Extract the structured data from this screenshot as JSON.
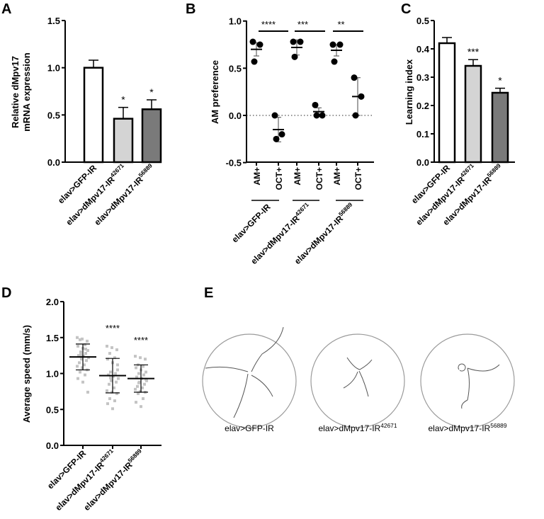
{
  "panel_letters": [
    "A",
    "B",
    "C",
    "D",
    "E"
  ],
  "chart_data": [
    {
      "panel": "A",
      "type": "bar",
      "ylabel_lines": [
        "Relative dMpv17",
        "mRNA expression"
      ],
      "ylim": [
        0,
        1.5
      ],
      "yticks": [
        "0.0",
        "0.5",
        "1.0",
        "1.5"
      ],
      "categories": [
        {
          "base": "elav>GFP-IR",
          "sup": ""
        },
        {
          "base": "elav>dMpv17-IR",
          "sup": "42671"
        },
        {
          "base": "elav>dMpv17-IR",
          "sup": "56889"
        }
      ],
      "values": [
        1.0,
        0.46,
        0.56
      ],
      "errors": [
        0.08,
        0.12,
        0.1
      ],
      "fills": [
        "#ffffff",
        "#d4d4d4",
        "#7a7a7a"
      ],
      "significance": [
        "",
        "*",
        "*"
      ]
    },
    {
      "panel": "B",
      "type": "scatter",
      "ylabel": "AM preference",
      "ylim": [
        -0.5,
        1.0
      ],
      "yticks": [
        "-0.5",
        "0.0",
        "0.5",
        "1.0"
      ],
      "conditions": [
        "AM+",
        "OCT+",
        "AM+",
        "OCT+",
        "AM+",
        "OCT+"
      ],
      "groups": [
        {
          "base": "elav>GFP-IR",
          "sup": ""
        },
        {
          "base": "elav>dMpv17-IR",
          "sup": "42671"
        },
        {
          "base": "elav>dMpv17-IR",
          "sup": "56889"
        }
      ],
      "points": [
        [
          0.78,
          0.75,
          0.57
        ],
        [
          0.0,
          -0.2,
          -0.25
        ],
        [
          0.78,
          0.78,
          0.62
        ],
        [
          0.11,
          0.0,
          0.0
        ],
        [
          0.75,
          0.75,
          0.57
        ],
        [
          0.4,
          0.2,
          0.0
        ]
      ],
      "means": [
        0.7,
        -0.15,
        0.72,
        0.04,
        0.69,
        0.2
      ],
      "errors": [
        0.07,
        0.13,
        0.08,
        0.04,
        0.06,
        0.2
      ],
      "significance": [
        "****",
        "***",
        "**"
      ]
    },
    {
      "panel": "C",
      "type": "bar",
      "ylabel": "Learning index",
      "ylim": [
        0,
        0.5
      ],
      "yticks": [
        "0.0",
        "0.1",
        "0.2",
        "0.3",
        "0.4",
        "0.5"
      ],
      "categories": [
        {
          "base": "elav>GFP-IR",
          "sup": ""
        },
        {
          "base": "elav>dMpv17-IR",
          "sup": "42671"
        },
        {
          "base": "elav>dMpv17-IR",
          "sup": "56889"
        }
      ],
      "values": [
        0.42,
        0.34,
        0.245
      ],
      "errors": [
        0.02,
        0.022,
        0.016
      ],
      "fills": [
        "#ffffff",
        "#d4d4d4",
        "#7a7a7a"
      ],
      "significance": [
        "",
        "***",
        "*"
      ]
    },
    {
      "panel": "D",
      "type": "scatter",
      "ylabel": "Average speed (mm/s)",
      "ylim": [
        0,
        2.0
      ],
      "yticks": [
        "0.0",
        "0.5",
        "1.0",
        "1.5",
        "2.0"
      ],
      "categories": [
        {
          "base": "elav>GFP-IR",
          "sup": ""
        },
        {
          "base": "elav>dMpv17-IR",
          "sup": "42671"
        },
        {
          "base": "elav>dMpv17-IR",
          "sup": "56889"
        }
      ],
      "points": [
        [
          1.5,
          1.48,
          1.45,
          1.47,
          1.4,
          1.38,
          1.35,
          1.32,
          1.3,
          1.28,
          1.25,
          1.24,
          1.22,
          1.2,
          1.18,
          1.15,
          1.12,
          1.1,
          1.08,
          1.05,
          1.02,
          0.98,
          0.93,
          0.88,
          0.74,
          1.26,
          1.34
        ],
        [
          1.38,
          1.36,
          1.33,
          1.28,
          1.22,
          1.2,
          1.15,
          1.05,
          1.02,
          1.0,
          0.98,
          0.96,
          0.93,
          0.9,
          0.88,
          0.85,
          0.8,
          0.76,
          0.74,
          0.72,
          0.65,
          0.62,
          0.58,
          0.51,
          1.12,
          0.94
        ],
        [
          1.24,
          1.22,
          1.2,
          1.12,
          1.1,
          1.08,
          1.05,
          1.02,
          1.0,
          0.98,
          0.95,
          0.93,
          0.9,
          0.88,
          0.85,
          0.82,
          0.8,
          0.78,
          0.75,
          0.74,
          0.72,
          0.65,
          0.6,
          0.54,
          0.92,
          0.87
        ]
      ],
      "means": [
        1.23,
        0.97,
        0.93
      ],
      "sd": [
        0.18,
        0.24,
        0.19
      ],
      "significance": [
        "",
        "****",
        "****"
      ]
    }
  ],
  "panel_e": {
    "labels": [
      {
        "base": "elav>GFP-IR",
        "sup": ""
      },
      {
        "base": "elav>dMpv17-IR",
        "sup": "42671"
      },
      {
        "base": "elav>dMpv17-IR",
        "sup": "56889"
      }
    ]
  },
  "colors": {
    "axis": "#000000",
    "points_d": "#c4c4c4",
    "arena": "#9a9a9a"
  }
}
